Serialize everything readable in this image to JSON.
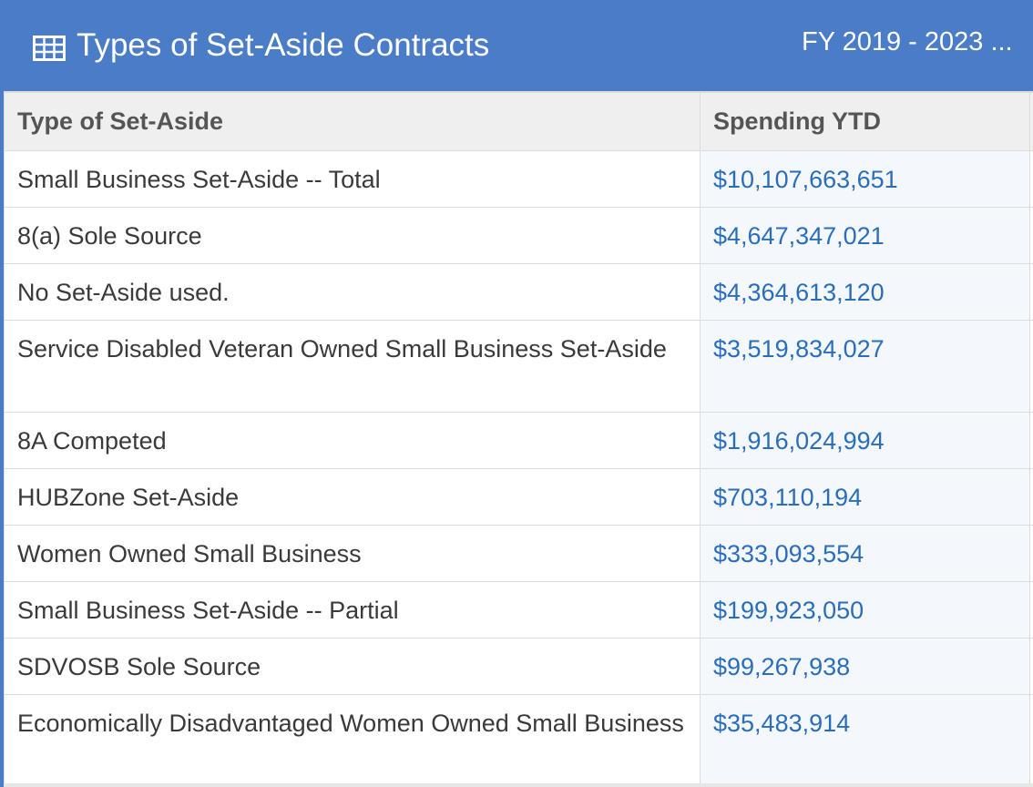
{
  "header": {
    "title": "Types of Set-Aside Contracts",
    "range": "FY 2019 - 2023 ..."
  },
  "colors": {
    "header_bg": "#4a7cc7",
    "link": "#2a6ebb"
  },
  "icons": {
    "title_icon": "table-icon"
  },
  "table": {
    "columns": [
      "Type of Set-Aside",
      "Spending YTD"
    ],
    "rows": [
      {
        "type": "Small Business Set-Aside -- Total",
        "spending": "$10,107,663,651"
      },
      {
        "type": "8(a) Sole Source",
        "spending": "$4,647,347,021"
      },
      {
        "type": "No Set-Aside used.",
        "spending": "$4,364,613,120"
      },
      {
        "type": "Service Disabled Veteran Owned Small Business Set-Aside",
        "spending": "$3,519,834,027"
      },
      {
        "type": "8A Competed",
        "spending": "$1,916,024,994"
      },
      {
        "type": "HUBZone Set-Aside",
        "spending": "$703,110,194"
      },
      {
        "type": "Women Owned Small Business",
        "spending": "$333,093,554"
      },
      {
        "type": "Small Business Set-Aside -- Partial",
        "spending": "$199,923,050"
      },
      {
        "type": "SDVOSB Sole Source",
        "spending": "$99,267,938"
      },
      {
        "type": "Economically Disadvantaged Women Owned Small Business",
        "spending": "$35,483,914"
      }
    ]
  }
}
